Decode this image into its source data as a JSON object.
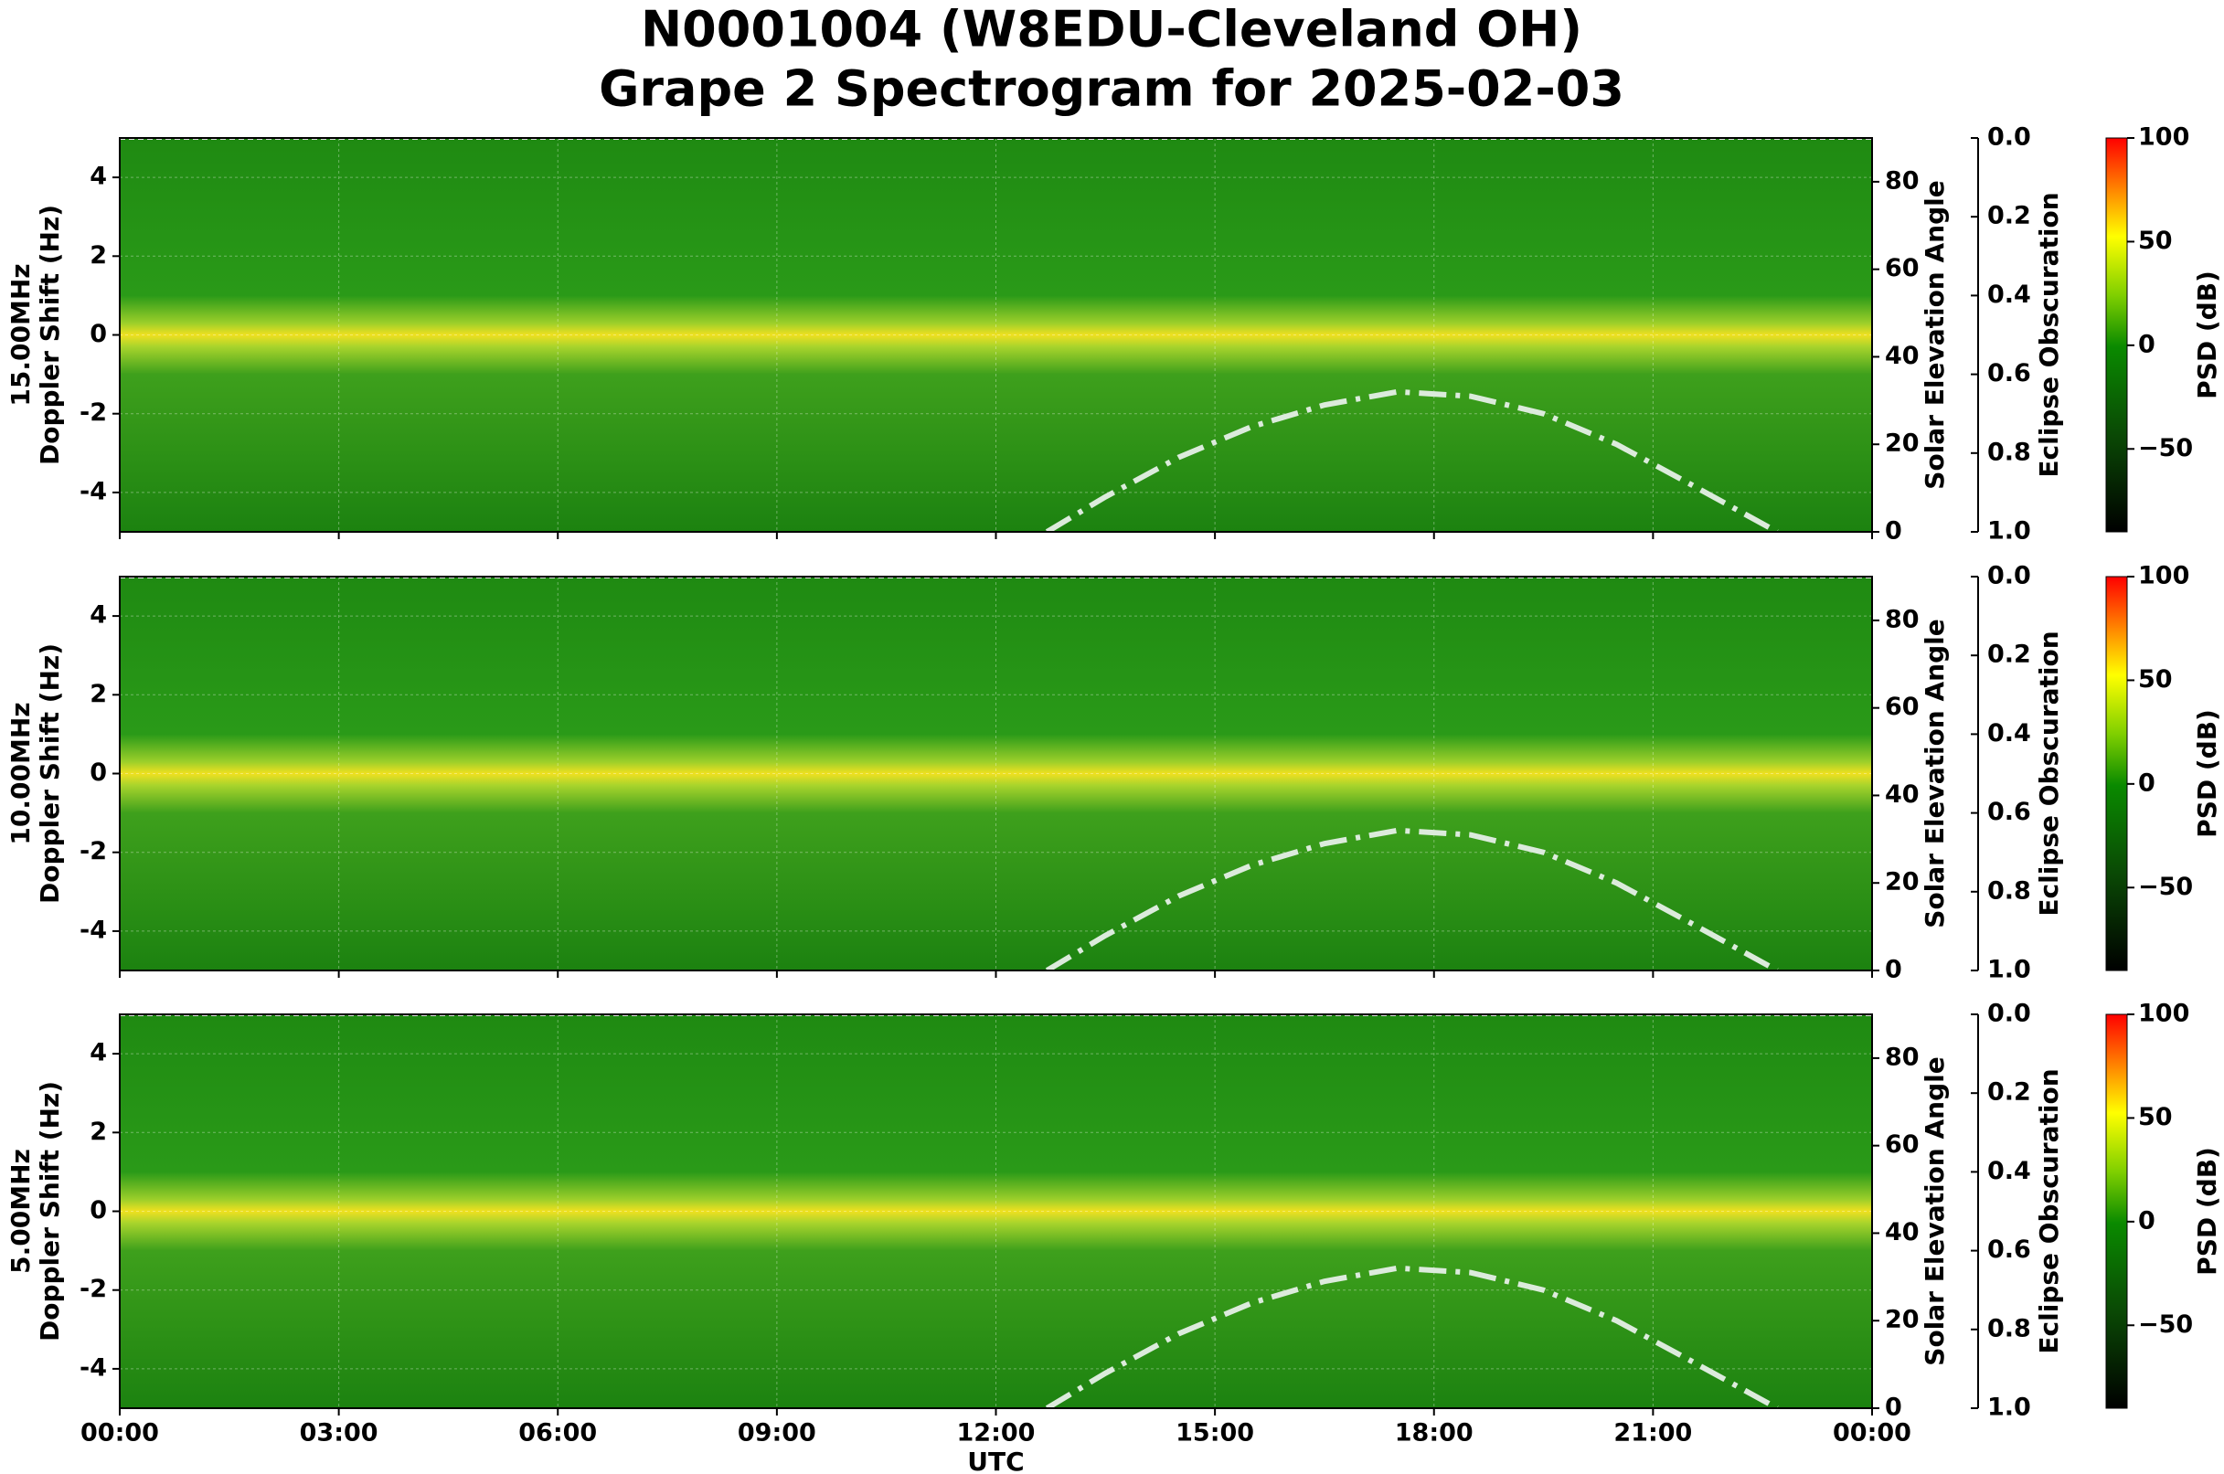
{
  "title": "N0001004 (W8EDU-Cleveland OH)",
  "subtitle": "Grape 2 Spectrogram for 2025-02-03",
  "chart_data": [
    {
      "type": "spectrogram",
      "band": "15.00MHz",
      "ylabel": "Doppler Shift (Hz)",
      "ylim": [
        -5,
        5
      ],
      "yticks": [
        -4,
        -2,
        0,
        2,
        4
      ],
      "y2label": "Solar Elevation Angle",
      "y2lim": [
        0,
        90
      ],
      "y2ticks": [
        0,
        20,
        40,
        60,
        80
      ],
      "y3label": "Eclipse Obscuration",
      "y3lim": [
        1,
        0
      ],
      "y3ticks": [
        {
          "value": 0,
          "label": "0.0"
        },
        {
          "value": 0.2,
          "label": "0.2"
        },
        {
          "value": 0.4,
          "label": "0.4"
        },
        {
          "value": 0.6,
          "label": "0.6"
        },
        {
          "value": 0.8,
          "label": "0.8"
        },
        {
          "value": 1,
          "label": "1.0"
        }
      ],
      "clabel": "PSD (dB)",
      "clim": [
        -90,
        100
      ],
      "cticks": [
        {
          "value": -50,
          "label": "−50"
        },
        0,
        50,
        100
      ],
      "grid": true,
      "series": [
        {
          "color": "#dcebdc",
          "axis": "y2",
          "x": [
            12.7,
            13.5,
            14.5,
            15.5,
            16.5,
            17.5,
            18.5,
            19.5,
            20.5,
            21.5,
            22.7
          ],
          "values": [
            0,
            8,
            17,
            24,
            29,
            32,
            31,
            27,
            20,
            11,
            0
          ]
        }
      ]
    },
    {
      "type": "spectrogram",
      "band": "10.00MHz",
      "ylabel": "Doppler Shift (Hz)",
      "ylim": [
        -5,
        5
      ],
      "yticks": [
        -4,
        -2,
        0,
        2,
        4
      ],
      "y2label": "Solar Elevation Angle",
      "y2lim": [
        0,
        90
      ],
      "y2ticks": [
        0,
        20,
        40,
        60,
        80
      ],
      "y3label": "Eclipse Obscuration",
      "y3lim": [
        1,
        0
      ],
      "y3ticks": [
        {
          "value": 0,
          "label": "0.0"
        },
        {
          "value": 0.2,
          "label": "0.2"
        },
        {
          "value": 0.4,
          "label": "0.4"
        },
        {
          "value": 0.6,
          "label": "0.6"
        },
        {
          "value": 0.8,
          "label": "0.8"
        },
        {
          "value": 1,
          "label": "1.0"
        }
      ],
      "clabel": "PSD (dB)",
      "clim": [
        -90,
        100
      ],
      "cticks": [
        {
          "value": -50,
          "label": "−50"
        },
        0,
        50,
        100
      ],
      "grid": true,
      "series": [
        {
          "color": "#dcebdc",
          "axis": "y2",
          "x": [
            12.7,
            13.5,
            14.5,
            15.5,
            16.5,
            17.5,
            18.5,
            19.5,
            20.5,
            21.5,
            22.7
          ],
          "values": [
            0,
            8,
            17,
            24,
            29,
            32,
            31,
            27,
            20,
            11,
            0
          ]
        }
      ]
    },
    {
      "type": "spectrogram",
      "band": "5.00MHz",
      "ylabel": "Doppler Shift (Hz)",
      "ylim": [
        -5,
        5
      ],
      "yticks": [
        -4,
        -2,
        0,
        2,
        4
      ],
      "y2label": "Solar Elevation Angle",
      "y2lim": [
        0,
        90
      ],
      "y2ticks": [
        0,
        20,
        40,
        60,
        80
      ],
      "y3label": "Eclipse Obscuration",
      "y3lim": [
        1,
        0
      ],
      "y3ticks": [
        {
          "value": 0,
          "label": "0.0"
        },
        {
          "value": 0.2,
          "label": "0.2"
        },
        {
          "value": 0.4,
          "label": "0.4"
        },
        {
          "value": 0.6,
          "label": "0.6"
        },
        {
          "value": 0.8,
          "label": "0.8"
        },
        {
          "value": 1,
          "label": "1.0"
        }
      ],
      "clabel": "PSD (dB)",
      "clim": [
        -90,
        100
      ],
      "cticks": [
        {
          "value": -50,
          "label": "−50"
        },
        0,
        50,
        100
      ],
      "grid": true,
      "xlabel": "UTC",
      "xlim": [
        0,
        24
      ],
      "xticks": [
        {
          "value": 0,
          "label": "00:00"
        },
        {
          "value": 3,
          "label": "03:00"
        },
        {
          "value": 6,
          "label": "06:00"
        },
        {
          "value": 9,
          "label": "09:00"
        },
        {
          "value": 12,
          "label": "12:00"
        },
        {
          "value": 15,
          "label": "15:00"
        },
        {
          "value": 18,
          "label": "18:00"
        },
        {
          "value": 21,
          "label": "21:00"
        },
        {
          "value": 24,
          "label": "00:00"
        }
      ],
      "series": [
        {
          "color": "#dcebdc",
          "axis": "y2",
          "x": [
            12.7,
            13.5,
            14.5,
            15.5,
            16.5,
            17.5,
            18.5,
            19.5,
            20.5,
            21.5,
            22.7
          ],
          "values": [
            0,
            8,
            17,
            24,
            29,
            32,
            31,
            27,
            20,
            11,
            0
          ]
        }
      ]
    }
  ]
}
